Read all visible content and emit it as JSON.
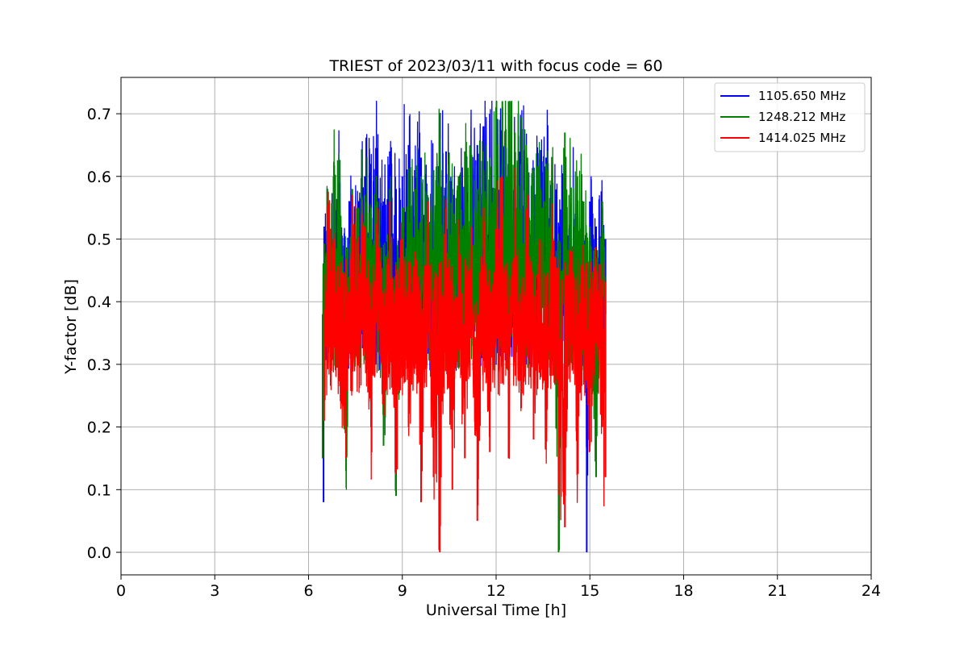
{
  "chart_data": {
    "type": "line",
    "title": "TRIEST of 2023/03/11 with focus code = 60",
    "xlabel": "Universal Time [h]",
    "ylabel": "Y-factor [dB]",
    "xlim": [
      0,
      24
    ],
    "ylim": [
      -0.036,
      0.758
    ],
    "xticks": [
      0,
      3,
      6,
      9,
      12,
      15,
      18,
      21,
      24
    ],
    "yticks": [
      0.0,
      0.1,
      0.2,
      0.3,
      0.4,
      0.5,
      0.6,
      0.7
    ],
    "ytick_labels": [
      "0.0",
      "0.1",
      "0.2",
      "0.3",
      "0.4",
      "0.5",
      "0.6",
      "0.7"
    ],
    "grid": true,
    "legend_position": "top-right",
    "series": [
      {
        "name": "1105.650 MHz",
        "color": "#0000ff",
        "x": [
          6.48,
          6.5,
          6.6,
          6.8,
          7.0,
          7.2,
          7.4,
          7.6,
          7.8,
          8.0,
          8.2,
          8.4,
          8.6,
          8.8,
          9.0,
          9.2,
          9.4,
          9.6,
          9.8,
          10.0,
          10.2,
          10.4,
          10.6,
          10.8,
          11.0,
          11.2,
          11.4,
          11.6,
          11.8,
          12.0,
          12.2,
          12.4,
          12.6,
          12.8,
          13.0,
          13.2,
          13.4,
          13.6,
          13.8,
          14.0,
          14.2,
          14.4,
          14.6,
          14.8,
          14.9,
          15.0,
          15.2,
          15.4,
          15.5
        ],
        "y": [
          0.08,
          0.52,
          0.58,
          0.55,
          0.59,
          0.45,
          0.57,
          0.56,
          0.6,
          0.62,
          0.63,
          0.56,
          0.64,
          0.58,
          0.6,
          0.65,
          0.61,
          0.63,
          0.57,
          0.55,
          0.6,
          0.64,
          0.58,
          0.56,
          0.57,
          0.62,
          0.65,
          0.68,
          0.7,
          0.63,
          0.71,
          0.66,
          0.64,
          0.67,
          0.62,
          0.6,
          0.57,
          0.63,
          0.56,
          0.52,
          0.55,
          0.54,
          0.56,
          0.55,
          0.0,
          0.56,
          0.52,
          0.55,
          0.5
        ]
      },
      {
        "name": "1248.212 MHz",
        "color": "#008000",
        "x": [
          6.45,
          6.5,
          6.6,
          6.8,
          7.0,
          7.2,
          7.4,
          7.6,
          7.8,
          8.0,
          8.2,
          8.4,
          8.6,
          8.8,
          9.0,
          9.2,
          9.4,
          9.6,
          9.8,
          10.0,
          10.2,
          10.4,
          10.6,
          10.8,
          11.0,
          11.2,
          11.4,
          11.6,
          11.8,
          12.0,
          12.2,
          12.4,
          12.6,
          12.8,
          13.0,
          13.2,
          13.4,
          13.6,
          13.8,
          14.0,
          14.2,
          14.4,
          14.6,
          14.8,
          15.0,
          15.2,
          15.4,
          15.5
        ],
        "y": [
          0.15,
          0.45,
          0.58,
          0.6,
          0.56,
          0.13,
          0.58,
          0.55,
          0.57,
          0.55,
          0.56,
          0.17,
          0.58,
          0.09,
          0.55,
          0.56,
          0.58,
          0.6,
          0.57,
          0.61,
          0.66,
          0.55,
          0.57,
          0.6,
          0.64,
          0.62,
          0.58,
          0.61,
          0.63,
          0.71,
          0.72,
          0.72,
          0.67,
          0.62,
          0.63,
          0.61,
          0.6,
          0.62,
          0.59,
          0.0,
          0.67,
          0.55,
          0.6,
          0.56,
          0.52,
          0.12,
          0.56,
          0.43
        ]
      },
      {
        "name": "1414.025 MHz",
        "color": "#ff0000",
        "x": [
          6.5,
          6.6,
          6.8,
          7.0,
          7.2,
          7.4,
          7.6,
          7.8,
          8.0,
          8.2,
          8.4,
          8.6,
          8.8,
          9.0,
          9.2,
          9.4,
          9.6,
          9.8,
          10.0,
          10.2,
          10.4,
          10.6,
          10.8,
          11.0,
          11.2,
          11.4,
          11.6,
          11.8,
          12.0,
          12.2,
          12.4,
          12.6,
          12.8,
          13.0,
          13.2,
          13.4,
          13.6,
          13.8,
          14.0,
          14.2,
          14.4,
          14.6,
          14.8,
          15.0,
          15.2,
          15.4,
          15.5
        ],
        "y": [
          0.21,
          0.55,
          0.5,
          0.3,
          0.15,
          0.5,
          0.45,
          0.52,
          0.2,
          0.55,
          0.25,
          0.56,
          0.13,
          0.5,
          0.2,
          0.48,
          0.08,
          0.52,
          0.12,
          0.0,
          0.55,
          0.1,
          0.5,
          0.15,
          0.52,
          0.05,
          0.55,
          0.16,
          0.5,
          0.6,
          0.15,
          0.58,
          0.23,
          0.55,
          0.18,
          0.5,
          0.19,
          0.52,
          0.11,
          0.04,
          0.48,
          0.13,
          0.45,
          0.17,
          0.45,
          0.2,
          0.12
        ]
      }
    ]
  }
}
